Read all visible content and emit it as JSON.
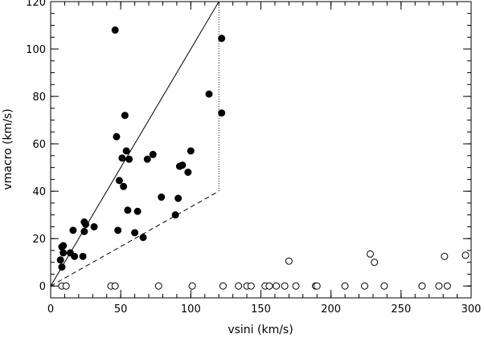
{
  "chart_data": {
    "type": "scatter",
    "xlabel": "vsini (km/s)",
    "ylabel": "vmacro (km/s)",
    "xlim": [
      0,
      300
    ],
    "ylim": [
      -5,
      120
    ],
    "x_ticks": [
      0,
      50,
      100,
      150,
      200,
      250,
      300
    ],
    "y_ticks": [
      0,
      20,
      40,
      60,
      80,
      100,
      120
    ],
    "x_minor_step": 10,
    "y_minor_step": 5,
    "grid": false,
    "series": [
      {
        "marker": "filled-circle",
        "color": "#000000",
        "points": [
          [
            7,
            11
          ],
          [
            8,
            8
          ],
          [
            8,
            16.5
          ],
          [
            9,
            17
          ],
          [
            9,
            14
          ],
          [
            14,
            14
          ],
          [
            16,
            23.5
          ],
          [
            17,
            12.5
          ],
          [
            23,
            12.5
          ],
          [
            24,
            27
          ],
          [
            24,
            23
          ],
          [
            25,
            26
          ],
          [
            31,
            25
          ],
          [
            46,
            108
          ],
          [
            47,
            63
          ],
          [
            48,
            23.5
          ],
          [
            49,
            44.5
          ],
          [
            51,
            54
          ],
          [
            52,
            42
          ],
          [
            53,
            72
          ],
          [
            54,
            57
          ],
          [
            55,
            32
          ],
          [
            56,
            53.5
          ],
          [
            60,
            22.5
          ],
          [
            62,
            31.5
          ],
          [
            66,
            20.5
          ],
          [
            69,
            53.5
          ],
          [
            73,
            55.5
          ],
          [
            79,
            37.5
          ],
          [
            89,
            30
          ],
          [
            91,
            37
          ],
          [
            92,
            50.5
          ],
          [
            94,
            51
          ],
          [
            98,
            48
          ],
          [
            100,
            57
          ],
          [
            113,
            81
          ],
          [
            122,
            104.5
          ],
          [
            122,
            73
          ]
        ]
      },
      {
        "marker": "open-circle",
        "color": "#000000",
        "points": [
          [
            8,
            0
          ],
          [
            11,
            0
          ],
          [
            43,
            0
          ],
          [
            46,
            0
          ],
          [
            77,
            0
          ],
          [
            101,
            0
          ],
          [
            123,
            0
          ],
          [
            134,
            0
          ],
          [
            140,
            0
          ],
          [
            143,
            0
          ],
          [
            153,
            0
          ],
          [
            156,
            0
          ],
          [
            161,
            0
          ],
          [
            167,
            0
          ],
          [
            170,
            10.5
          ],
          [
            175,
            0
          ],
          [
            189,
            0
          ],
          [
            190,
            0
          ],
          [
            210,
            0
          ],
          [
            224,
            0
          ],
          [
            228,
            13.5
          ],
          [
            231,
            10
          ],
          [
            238,
            0
          ],
          [
            265,
            0
          ],
          [
            277,
            0
          ],
          [
            281,
            12.5
          ],
          [
            283,
            0
          ],
          [
            296,
            13
          ]
        ]
      }
    ],
    "lines": [
      {
        "style": "solid",
        "points": [
          [
            0,
            0
          ],
          [
            120,
            120
          ]
        ]
      },
      {
        "style": "dashed",
        "points": [
          [
            0,
            0
          ],
          [
            120,
            40
          ]
        ]
      },
      {
        "style": "dotted",
        "points": [
          [
            120,
            40
          ],
          [
            120,
            120
          ]
        ]
      }
    ]
  }
}
